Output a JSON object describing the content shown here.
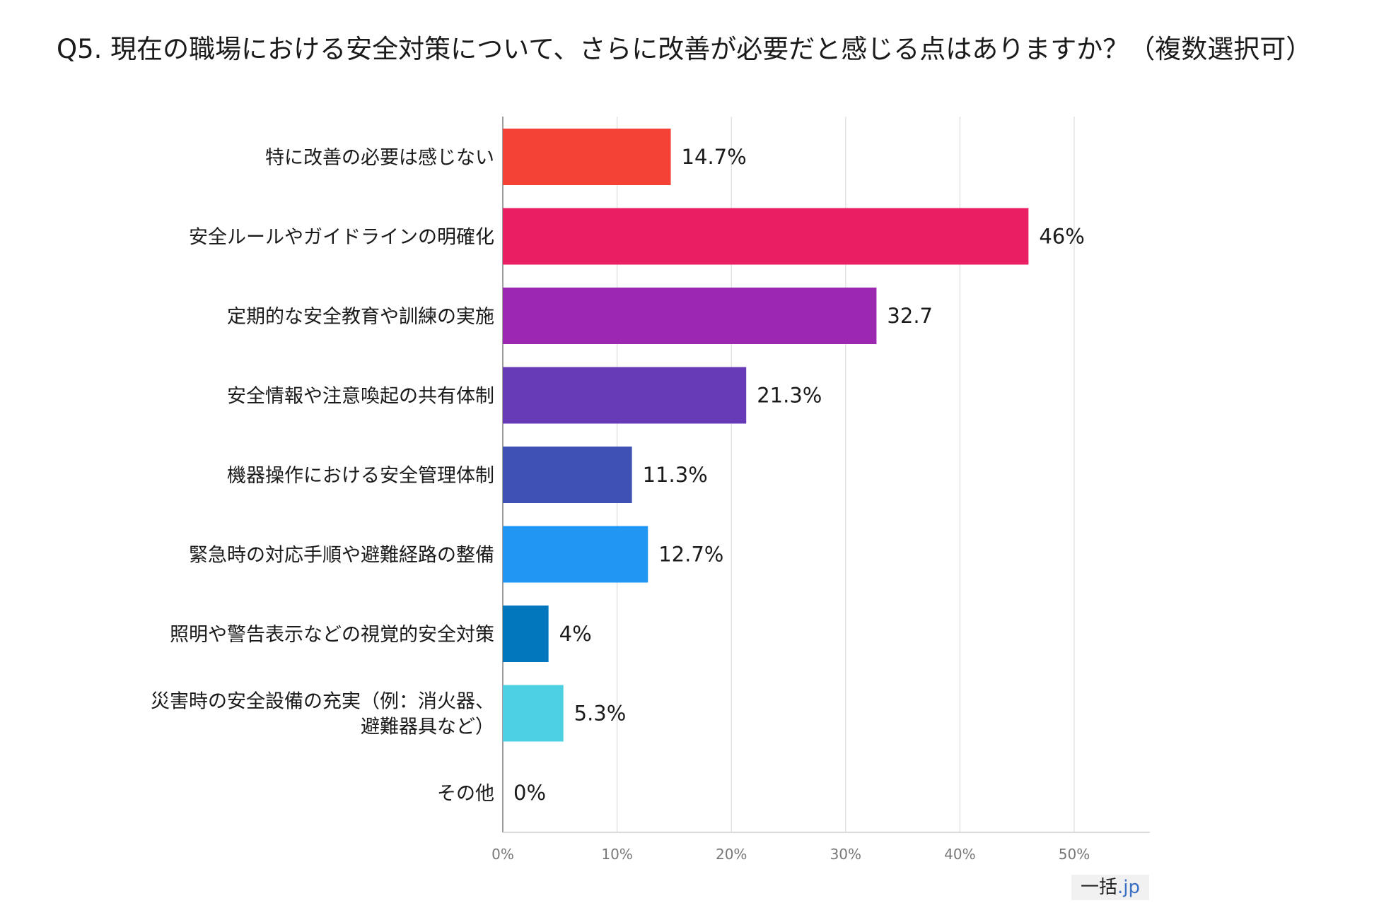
{
  "title": "Q5. 現在の職場における安全対策について、さらに改善が必要だと感じる点はありますか？（複数選択可）",
  "brand": {
    "main": "一括",
    "suffix": ".jp"
  },
  "chart_data": {
    "type": "bar",
    "orientation": "horizontal",
    "categories": [
      [
        "特に改善の必要は感じない"
      ],
      [
        "安全ルールやガイドラインの明確化"
      ],
      [
        "定期的な安全教育や訓練の実施"
      ],
      [
        "安全情報や注意喚起の共有体制"
      ],
      [
        "機器操作における安全管理体制"
      ],
      [
        "緊急時の対応手順や避難経路の整備"
      ],
      [
        "照明や警告表示などの視覚的安全対策"
      ],
      [
        "災害時の安全設備の充実（例：消火器、",
        "避難器具など）"
      ],
      [
        "その他"
      ]
    ],
    "values": [
      14.7,
      46,
      32.7,
      21.3,
      11.3,
      12.7,
      4,
      5.3,
      0
    ],
    "value_labels": [
      "14.7%",
      "46%",
      "32.7",
      "21.3%",
      "11.3%",
      "12.7%",
      "4%",
      "5.3%",
      "0%"
    ],
    "colors": [
      "#f44336",
      "#e91e63",
      "#9c27b0",
      "#673ab7",
      "#3f51b5",
      "#2196f3",
      "#0277bd",
      "#4dd0e1",
      "#cccccc"
    ],
    "x_ticks": [
      "0%",
      "10%",
      "20%",
      "30%",
      "40%",
      "50%"
    ],
    "xlim": [
      0,
      57
    ],
    "grid": true
  }
}
